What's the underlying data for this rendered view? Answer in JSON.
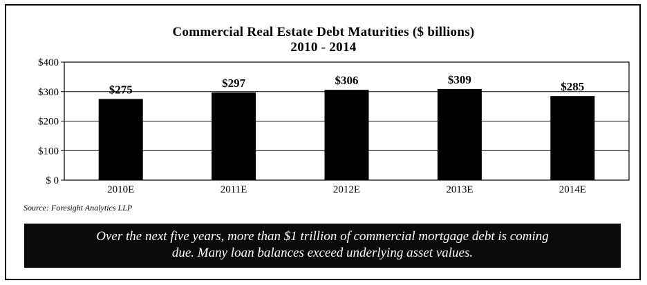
{
  "chart_data": {
    "type": "bar",
    "title": "Commercial Real Estate Debt Maturities ($ billions)",
    "subtitle": "2010 - 2014",
    "categories": [
      "2010E",
      "2011E",
      "2012E",
      "2013E",
      "2014E"
    ],
    "values": [
      275,
      297,
      306,
      309,
      285
    ],
    "data_labels": [
      "$275",
      "$297",
      "$306",
      "$309",
      "$285"
    ],
    "y_ticks": [
      0,
      100,
      200,
      300,
      400
    ],
    "y_tick_labels": [
      "$  0",
      "$100",
      "$200",
      "$300",
      "$400"
    ],
    "ylim": [
      0,
      400
    ],
    "xlabel": "",
    "ylabel": "",
    "grid": true,
    "bar_color": "#000000"
  },
  "source": "Source: Foresight Analytics LLP",
  "banner": {
    "line1": "Over the next five years, more than $1 trillion of commercial mortgage debt is coming",
    "line2": "due.  Many loan balances exceed underlying asset values."
  }
}
